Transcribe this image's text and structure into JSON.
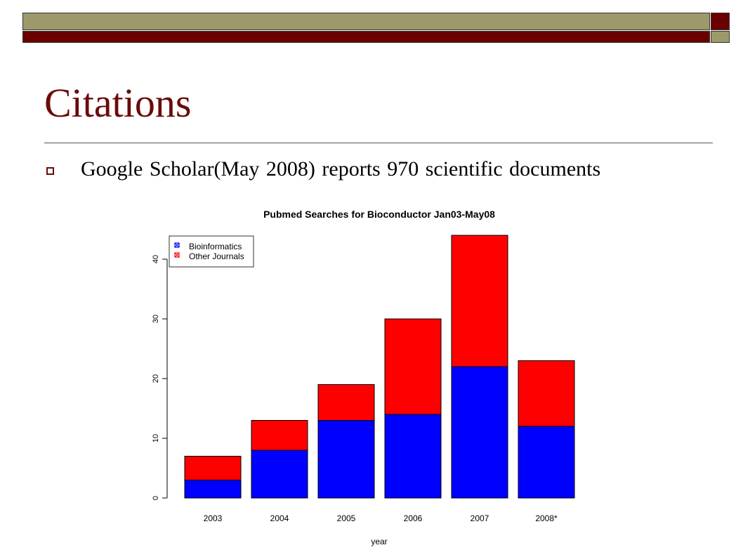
{
  "slide": {
    "title": "Citations",
    "bullet": "Google Scholar(May 2008) reports 970 scientific documents"
  },
  "colors": {
    "olive": "#9c9a6a",
    "maroon": "#6b0000",
    "title": "#6b0a0a",
    "series_bioinformatics": "#0000ff",
    "series_other": "#ff0000"
  },
  "chart_data": {
    "type": "bar",
    "stacked": true,
    "title": "Pubmed Searches for Bioconductor Jan03-May08",
    "xlabel": "year",
    "ylabel": "",
    "categories": [
      "2003",
      "2004",
      "2005",
      "2006",
      "2007",
      "2008*"
    ],
    "series": [
      {
        "name": "Bioinformatics",
        "color": "#0000ff",
        "values": [
          3,
          8,
          13,
          14,
          22,
          12
        ]
      },
      {
        "name": "Other Journals",
        "color": "#ff0000",
        "values": [
          4,
          5,
          6,
          16,
          22,
          11
        ]
      }
    ],
    "ylim": [
      0,
      44
    ],
    "yticks": [
      0,
      10,
      20,
      30,
      40
    ],
    "legend_position": "top-left",
    "grid": false
  }
}
